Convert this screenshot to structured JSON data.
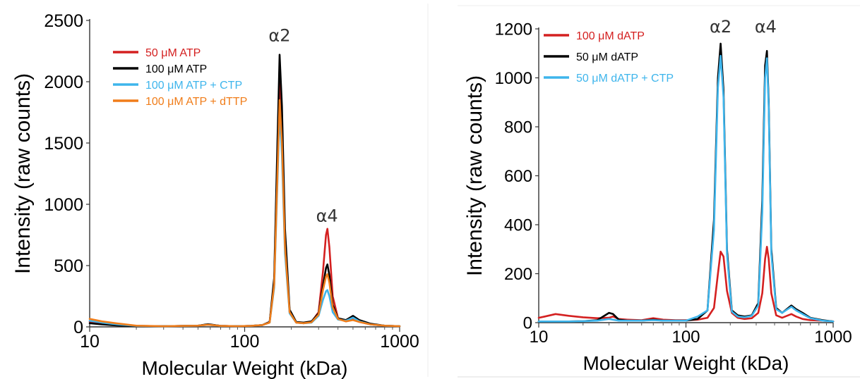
{
  "chart_data": [
    {
      "id": "left",
      "type": "line",
      "title": "",
      "xlabel": "Molecular Weight (kDa)",
      "ylabel": "Intensity (raw counts)",
      "xscale": "log",
      "xlim": [
        10,
        1000
      ],
      "ylim": [
        0,
        2500
      ],
      "xticks": [
        {
          "value": 10,
          "label": "10"
        },
        {
          "value": 100,
          "label": "100"
        },
        {
          "value": 1000,
          "label": "1000"
        }
      ],
      "yticks": [
        {
          "value": 0,
          "label": "0"
        },
        {
          "value": 500,
          "label": "500"
        },
        {
          "value": 1000,
          "label": "1000"
        },
        {
          "value": 1500,
          "label": "1500"
        },
        {
          "value": 2000,
          "label": "2000"
        },
        {
          "value": 2500,
          "label": "2500"
        }
      ],
      "grid": false,
      "legend_position": "top-left",
      "annotations": [
        {
          "text": "α2",
          "x": 168,
          "y": 2330
        },
        {
          "text": "α4",
          "x": 340,
          "y": 860
        }
      ],
      "series": [
        {
          "name": "50 μM ATP",
          "color": "#d42020",
          "x": [
            10,
            12,
            15,
            20,
            30,
            50,
            58,
            70,
            90,
            110,
            130,
            145,
            155,
            162,
            168,
            174,
            182,
            195,
            215,
            240,
            270,
            300,
            320,
            335,
            342,
            352,
            370,
            400,
            450,
            500,
            550,
            650,
            800,
            1000
          ],
          "y": [
            45,
            30,
            18,
            8,
            5,
            10,
            20,
            8,
            6,
            8,
            15,
            40,
            350,
            1200,
            2020,
            1600,
            700,
            120,
            35,
            30,
            40,
            120,
            450,
            750,
            800,
            650,
            250,
            70,
            45,
            60,
            40,
            20,
            10,
            5
          ]
        },
        {
          "name": "100 μM ATP",
          "color": "#000000",
          "x": [
            10,
            12,
            15,
            20,
            30,
            50,
            58,
            70,
            90,
            110,
            130,
            145,
            155,
            162,
            168,
            174,
            182,
            195,
            215,
            240,
            270,
            300,
            320,
            335,
            342,
            352,
            370,
            400,
            450,
            500,
            550,
            650,
            800,
            1000
          ],
          "y": [
            30,
            20,
            12,
            6,
            5,
            10,
            22,
            8,
            6,
            8,
            15,
            40,
            400,
            1400,
            2220,
            1800,
            800,
            140,
            40,
            35,
            45,
            110,
            330,
            480,
            510,
            420,
            180,
            70,
            55,
            90,
            55,
            25,
            10,
            5
          ]
        },
        {
          "name": "100 μM ATP + CTP",
          "color": "#3eb5ec",
          "x": [
            10,
            12,
            15,
            20,
            30,
            50,
            58,
            70,
            90,
            110,
            130,
            145,
            155,
            162,
            168,
            174,
            182,
            195,
            215,
            240,
            270,
            300,
            320,
            335,
            342,
            352,
            370,
            400,
            450,
            500,
            550,
            650,
            800,
            1000
          ],
          "y": [
            50,
            35,
            20,
            8,
            5,
            10,
            18,
            8,
            6,
            8,
            15,
            35,
            320,
            1100,
            1760,
            1400,
            600,
            110,
            35,
            30,
            35,
            90,
            220,
            290,
            300,
            250,
            120,
            60,
            50,
            75,
            45,
            20,
            10,
            5
          ]
        },
        {
          "name": "100 μM ATP + dTTP",
          "color": "#f07d1a",
          "x": [
            10,
            12,
            15,
            20,
            30,
            50,
            58,
            70,
            90,
            110,
            130,
            145,
            155,
            162,
            168,
            174,
            182,
            195,
            215,
            240,
            270,
            300,
            320,
            335,
            342,
            352,
            370,
            400,
            450,
            500,
            550,
            650,
            800,
            1000
          ],
          "y": [
            65,
            45,
            28,
            10,
            5,
            10,
            18,
            8,
            6,
            8,
            15,
            35,
            340,
            1150,
            1850,
            1500,
            650,
            120,
            35,
            30,
            38,
            100,
            300,
            410,
            430,
            360,
            160,
            65,
            45,
            55,
            40,
            20,
            10,
            5
          ]
        }
      ]
    },
    {
      "id": "right",
      "type": "line",
      "title": "",
      "xlabel": "Molecular Weight (kDa)",
      "ylabel": "Intensity (raw counts)",
      "xscale": "log",
      "xlim": [
        10,
        1000
      ],
      "ylim": [
        0,
        1200
      ],
      "xticks": [
        {
          "value": 10,
          "label": "10"
        },
        {
          "value": 100,
          "label": "100"
        },
        {
          "value": 1000,
          "label": "1000"
        }
      ],
      "yticks": [
        {
          "value": 0,
          "label": "0"
        },
        {
          "value": 200,
          "label": "200"
        },
        {
          "value": 400,
          "label": "400"
        },
        {
          "value": 600,
          "label": "600"
        },
        {
          "value": 800,
          "label": "800"
        },
        {
          "value": 1000,
          "label": "1000"
        },
        {
          "value": 1200,
          "label": "1200"
        }
      ],
      "grid": false,
      "legend_position": "top-left",
      "annotations": [
        {
          "text": "α2",
          "x": 172,
          "y": 1185
        },
        {
          "text": "α4",
          "x": 348,
          "y": 1185
        }
      ],
      "series": [
        {
          "name": "100 μM dATP",
          "color": "#d42020",
          "x": [
            10,
            11,
            13,
            16,
            20,
            25,
            30,
            32,
            35,
            40,
            50,
            60,
            70,
            85,
            100,
            120,
            140,
            155,
            165,
            172,
            180,
            190,
            205,
            225,
            250,
            280,
            310,
            330,
            345,
            355,
            365,
            380,
            410,
            450,
            520,
            560,
            620,
            700,
            850,
            1000
          ],
          "y": [
            20,
            25,
            35,
            28,
            22,
            18,
            20,
            25,
            15,
            12,
            10,
            18,
            12,
            10,
            10,
            12,
            20,
            60,
            200,
            290,
            270,
            130,
            40,
            20,
            15,
            18,
            40,
            120,
            260,
            310,
            260,
            120,
            30,
            20,
            35,
            25,
            15,
            10,
            8,
            5
          ]
        },
        {
          "name": "50 μM dATP",
          "color": "#000000",
          "x": [
            10,
            11,
            13,
            16,
            20,
            25,
            30,
            32,
            35,
            40,
            50,
            60,
            70,
            85,
            100,
            120,
            140,
            155,
            165,
            172,
            180,
            190,
            205,
            225,
            250,
            280,
            310,
            330,
            345,
            355,
            365,
            380,
            410,
            450,
            520,
            560,
            620,
            700,
            850,
            1000
          ],
          "y": [
            5,
            5,
            5,
            5,
            6,
            10,
            40,
            35,
            12,
            8,
            8,
            12,
            8,
            8,
            8,
            15,
            50,
            420,
            1000,
            1140,
            950,
            300,
            50,
            30,
            25,
            30,
            80,
            500,
            1050,
            1110,
            900,
            300,
            60,
            40,
            70,
            55,
            40,
            20,
            10,
            5
          ]
        },
        {
          "name": "50 μM dATP + CTP",
          "color": "#3eb5ec",
          "x": [
            10,
            11,
            13,
            16,
            20,
            25,
            30,
            32,
            35,
            40,
            50,
            60,
            70,
            85,
            100,
            120,
            140,
            155,
            165,
            172,
            180,
            190,
            205,
            225,
            250,
            280,
            310,
            330,
            345,
            355,
            365,
            380,
            410,
            450,
            520,
            560,
            620,
            700,
            850,
            1000
          ],
          "y": [
            5,
            5,
            5,
            5,
            6,
            8,
            15,
            12,
            8,
            8,
            8,
            10,
            8,
            8,
            8,
            25,
            50,
            380,
            960,
            1090,
            920,
            280,
            45,
            25,
            22,
            28,
            70,
            450,
            1000,
            1080,
            880,
            280,
            55,
            40,
            65,
            50,
            35,
            18,
            8,
            5
          ]
        }
      ]
    }
  ]
}
